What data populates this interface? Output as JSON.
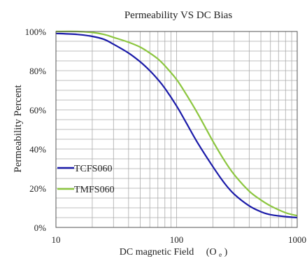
{
  "chart_data": {
    "type": "line",
    "title": "Permeability  VS DC Bias",
    "xlabel": "DC magnetic Field",
    "xlabel_unit": "(O",
    "xlabel_unit_sub": "e",
    "xlabel_unit_close": ")",
    "ylabel": "Permeability Percent",
    "x_scale": "log",
    "xlim": [
      10,
      1000
    ],
    "ylim": [
      0,
      100
    ],
    "grid": true,
    "legend_position": "lower-left",
    "x_ticks": [
      {
        "value": 10,
        "label": "10"
      },
      {
        "value": 100,
        "label": "100"
      },
      {
        "value": 1000,
        "label": "1000"
      }
    ],
    "y_ticks": [
      {
        "value": 0,
        "label": "0%"
      },
      {
        "value": 20,
        "label": "20%"
      },
      {
        "value": 40,
        "label": "40%"
      },
      {
        "value": 60,
        "label": "60%"
      },
      {
        "value": 80,
        "label": "80%"
      },
      {
        "value": 100,
        "label": "100%"
      }
    ],
    "series": [
      {
        "name": "TCFS060",
        "color": "#1a1aa8",
        "x": [
          10,
          15,
          20,
          25,
          30,
          40,
          50,
          60,
          70,
          80,
          100,
          120,
          150,
          200,
          250,
          300,
          400,
          500,
          600,
          800,
          1000
        ],
        "y": [
          99,
          98.5,
          97.5,
          96,
          93.5,
          89,
          84.5,
          80,
          75.5,
          71,
          62,
          53.5,
          43,
          31,
          22.5,
          17,
          11,
          8,
          6.5,
          5.5,
          5
        ]
      },
      {
        "name": "TMFS060",
        "color": "#8cc63f",
        "x": [
          10,
          15,
          20,
          25,
          30,
          40,
          50,
          60,
          70,
          80,
          100,
          120,
          150,
          200,
          250,
          300,
          400,
          500,
          600,
          800,
          1000
        ],
        "y": [
          100,
          100,
          99.5,
          98.5,
          97,
          94.5,
          92,
          89,
          86,
          82.5,
          75.5,
          68,
          58,
          44,
          34,
          27,
          18.5,
          14,
          11,
          7.5,
          6
        ]
      }
    ]
  }
}
